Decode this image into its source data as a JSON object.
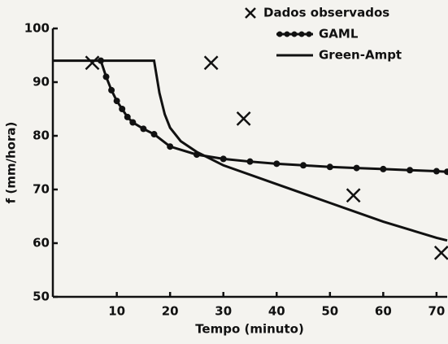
{
  "chart_data": {
    "type": "line",
    "xlabel": "Tempo (minuto)",
    "ylabel": "f (mm/hora)",
    "xlim": [
      -2,
      72
    ],
    "ylim": [
      50,
      100
    ],
    "xticks": [
      10,
      20,
      30,
      40,
      50,
      60,
      70
    ],
    "yticks": [
      50,
      60,
      70,
      80,
      90,
      100
    ],
    "legend": "upper right",
    "series": [
      {
        "name": "Dados observados",
        "color": "#111111",
        "marker": "x",
        "line": false,
        "x": [
          5.4,
          27.7,
          33.8,
          54.4,
          70.9
        ],
        "values": [
          93.6,
          93.6,
          83.2,
          68.9,
          58.2
        ]
      },
      {
        "name": "GAML",
        "color": "#111111",
        "marker": "dot",
        "line": true,
        "x": [
          7,
          8,
          9,
          10,
          11,
          12,
          13,
          15,
          17,
          20,
          25,
          30,
          35,
          40,
          45,
          50,
          55,
          60,
          65,
          70,
          72
        ],
        "values": [
          94,
          91,
          88.5,
          86.5,
          85,
          83.5,
          82.5,
          81.3,
          80.3,
          78,
          76.5,
          75.7,
          75.2,
          74.8,
          74.5,
          74.2,
          74,
          73.8,
          73.6,
          73.4,
          73.3
        ]
      },
      {
        "name": "Green-Ampt",
        "color": "#111111",
        "marker": "none",
        "line": true,
        "x": [
          -2,
          17,
          18,
          19,
          20,
          22,
          25,
          30,
          40,
          50,
          60,
          70,
          72
        ],
        "values": [
          94,
          94,
          88,
          84,
          81.5,
          79,
          77,
          74.5,
          71,
          67.5,
          64,
          61,
          60.5
        ]
      }
    ]
  }
}
